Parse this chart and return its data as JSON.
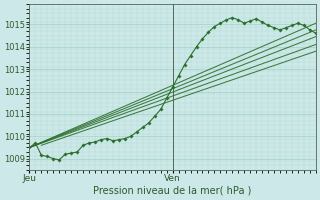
{
  "bg_color": "#cce8e8",
  "plot_bg_color": "#cce8e8",
  "grid_color": "#99ccbb",
  "line_color": "#2d6e2d",
  "ylim": [
    1008.5,
    1015.8
  ],
  "xlim": [
    0,
    48
  ],
  "yticks": [
    1009,
    1010,
    1011,
    1012,
    1013,
    1014,
    1015
  ],
  "xtick_labels": [
    "Jeu",
    "Ven"
  ],
  "xtick_positions": [
    0,
    24
  ],
  "vline_x": 24,
  "xlabel": "Pression niveau de la mer( hPa )",
  "main_line": {
    "x": [
      0,
      1,
      2,
      3,
      4,
      5,
      6,
      7,
      8,
      9,
      10,
      11,
      12,
      13,
      14,
      15,
      16,
      17,
      18,
      19,
      20,
      21,
      22,
      23,
      24,
      25,
      26,
      27,
      28,
      29,
      30,
      31,
      32,
      33,
      34,
      35,
      36,
      37,
      38,
      39,
      40,
      41,
      42,
      43,
      44,
      45,
      46,
      47,
      48
    ],
    "y": [
      1009.5,
      1009.7,
      1009.15,
      1009.1,
      1009.0,
      1008.95,
      1009.2,
      1009.25,
      1009.3,
      1009.6,
      1009.7,
      1009.75,
      1009.85,
      1009.9,
      1009.8,
      1009.85,
      1009.9,
      1010.0,
      1010.2,
      1010.4,
      1010.6,
      1010.9,
      1011.2,
      1011.7,
      1012.2,
      1012.7,
      1013.2,
      1013.6,
      1014.0,
      1014.35,
      1014.65,
      1014.9,
      1015.05,
      1015.2,
      1015.3,
      1015.2,
      1015.05,
      1015.15,
      1015.25,
      1015.1,
      1014.95,
      1014.85,
      1014.75,
      1014.85,
      1014.95,
      1015.05,
      1014.95,
      1014.75,
      1014.6
    ]
  },
  "smooth_lines": [
    {
      "x0": 0,
      "y0": 1009.5,
      "x1": 48,
      "y1": 1015.05
    },
    {
      "x0": 0,
      "y0": 1009.5,
      "x1": 48,
      "y1": 1014.75
    },
    {
      "x0": 0,
      "y0": 1009.5,
      "x1": 48,
      "y1": 1014.45
    },
    {
      "x0": 0,
      "y0": 1009.5,
      "x1": 48,
      "y1": 1014.1
    },
    {
      "x0": 2,
      "y0": 1009.6,
      "x1": 48,
      "y1": 1013.8
    }
  ]
}
